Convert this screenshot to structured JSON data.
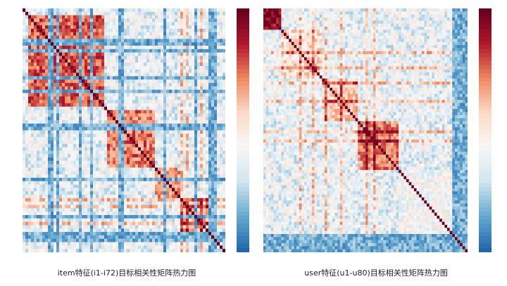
{
  "chart_data": [
    {
      "type": "heatmap",
      "title": "item特征(i1-i72)目标相关性矩阵热力图",
      "n": 72,
      "colorscale": [
        "#2166ac",
        "#67a9cf",
        "#d1e5f0",
        "#f7f7f7",
        "#fddbc7",
        "#ef8a62",
        "#b2182b",
        "#67001f"
      ],
      "value_range": [
        -0.2,
        1.0
      ],
      "seed": 17,
      "blocks": [
        {
          "range": [
            2,
            28
          ],
          "value": 0.72
        },
        {
          "range": [
            30,
            46
          ],
          "value": 0.68
        },
        {
          "range": [
            47,
            55
          ],
          "value": 0.6
        },
        {
          "range": [
            56,
            68
          ],
          "value": 0.55
        }
      ],
      "weak_rows": [
        9,
        10,
        12,
        20,
        24,
        34,
        35,
        50,
        61,
        66,
        67,
        68
      ],
      "strong_cols": [
        56,
        58,
        63,
        66
      ]
    },
    {
      "type": "heatmap",
      "title": "user特征(u1-u80)目标相关性矩阵热力图",
      "n": 80,
      "colorscale": [
        "#2166ac",
        "#67a9cf",
        "#d1e5f0",
        "#f7f7f7",
        "#fddbc7",
        "#ef8a62",
        "#b2182b",
        "#67001f"
      ],
      "value_range": [
        -0.2,
        1.0
      ],
      "seed": 29,
      "blocks": [
        {
          "range": [
            0,
            6
          ],
          "value": 0.9
        },
        {
          "range": [
            7,
            22
          ],
          "value": 0.45
        },
        {
          "range": [
            23,
            36
          ],
          "value": 0.5
        },
        {
          "range": [
            37,
            52
          ],
          "value": 0.65
        },
        {
          "range": [
            53,
            76
          ],
          "value": 0.3
        }
      ],
      "weak_rows": [
        74,
        75,
        76,
        77,
        78,
        79
      ],
      "strong_cols": [
        14,
        19,
        24,
        30,
        40,
        43
      ]
    }
  ]
}
